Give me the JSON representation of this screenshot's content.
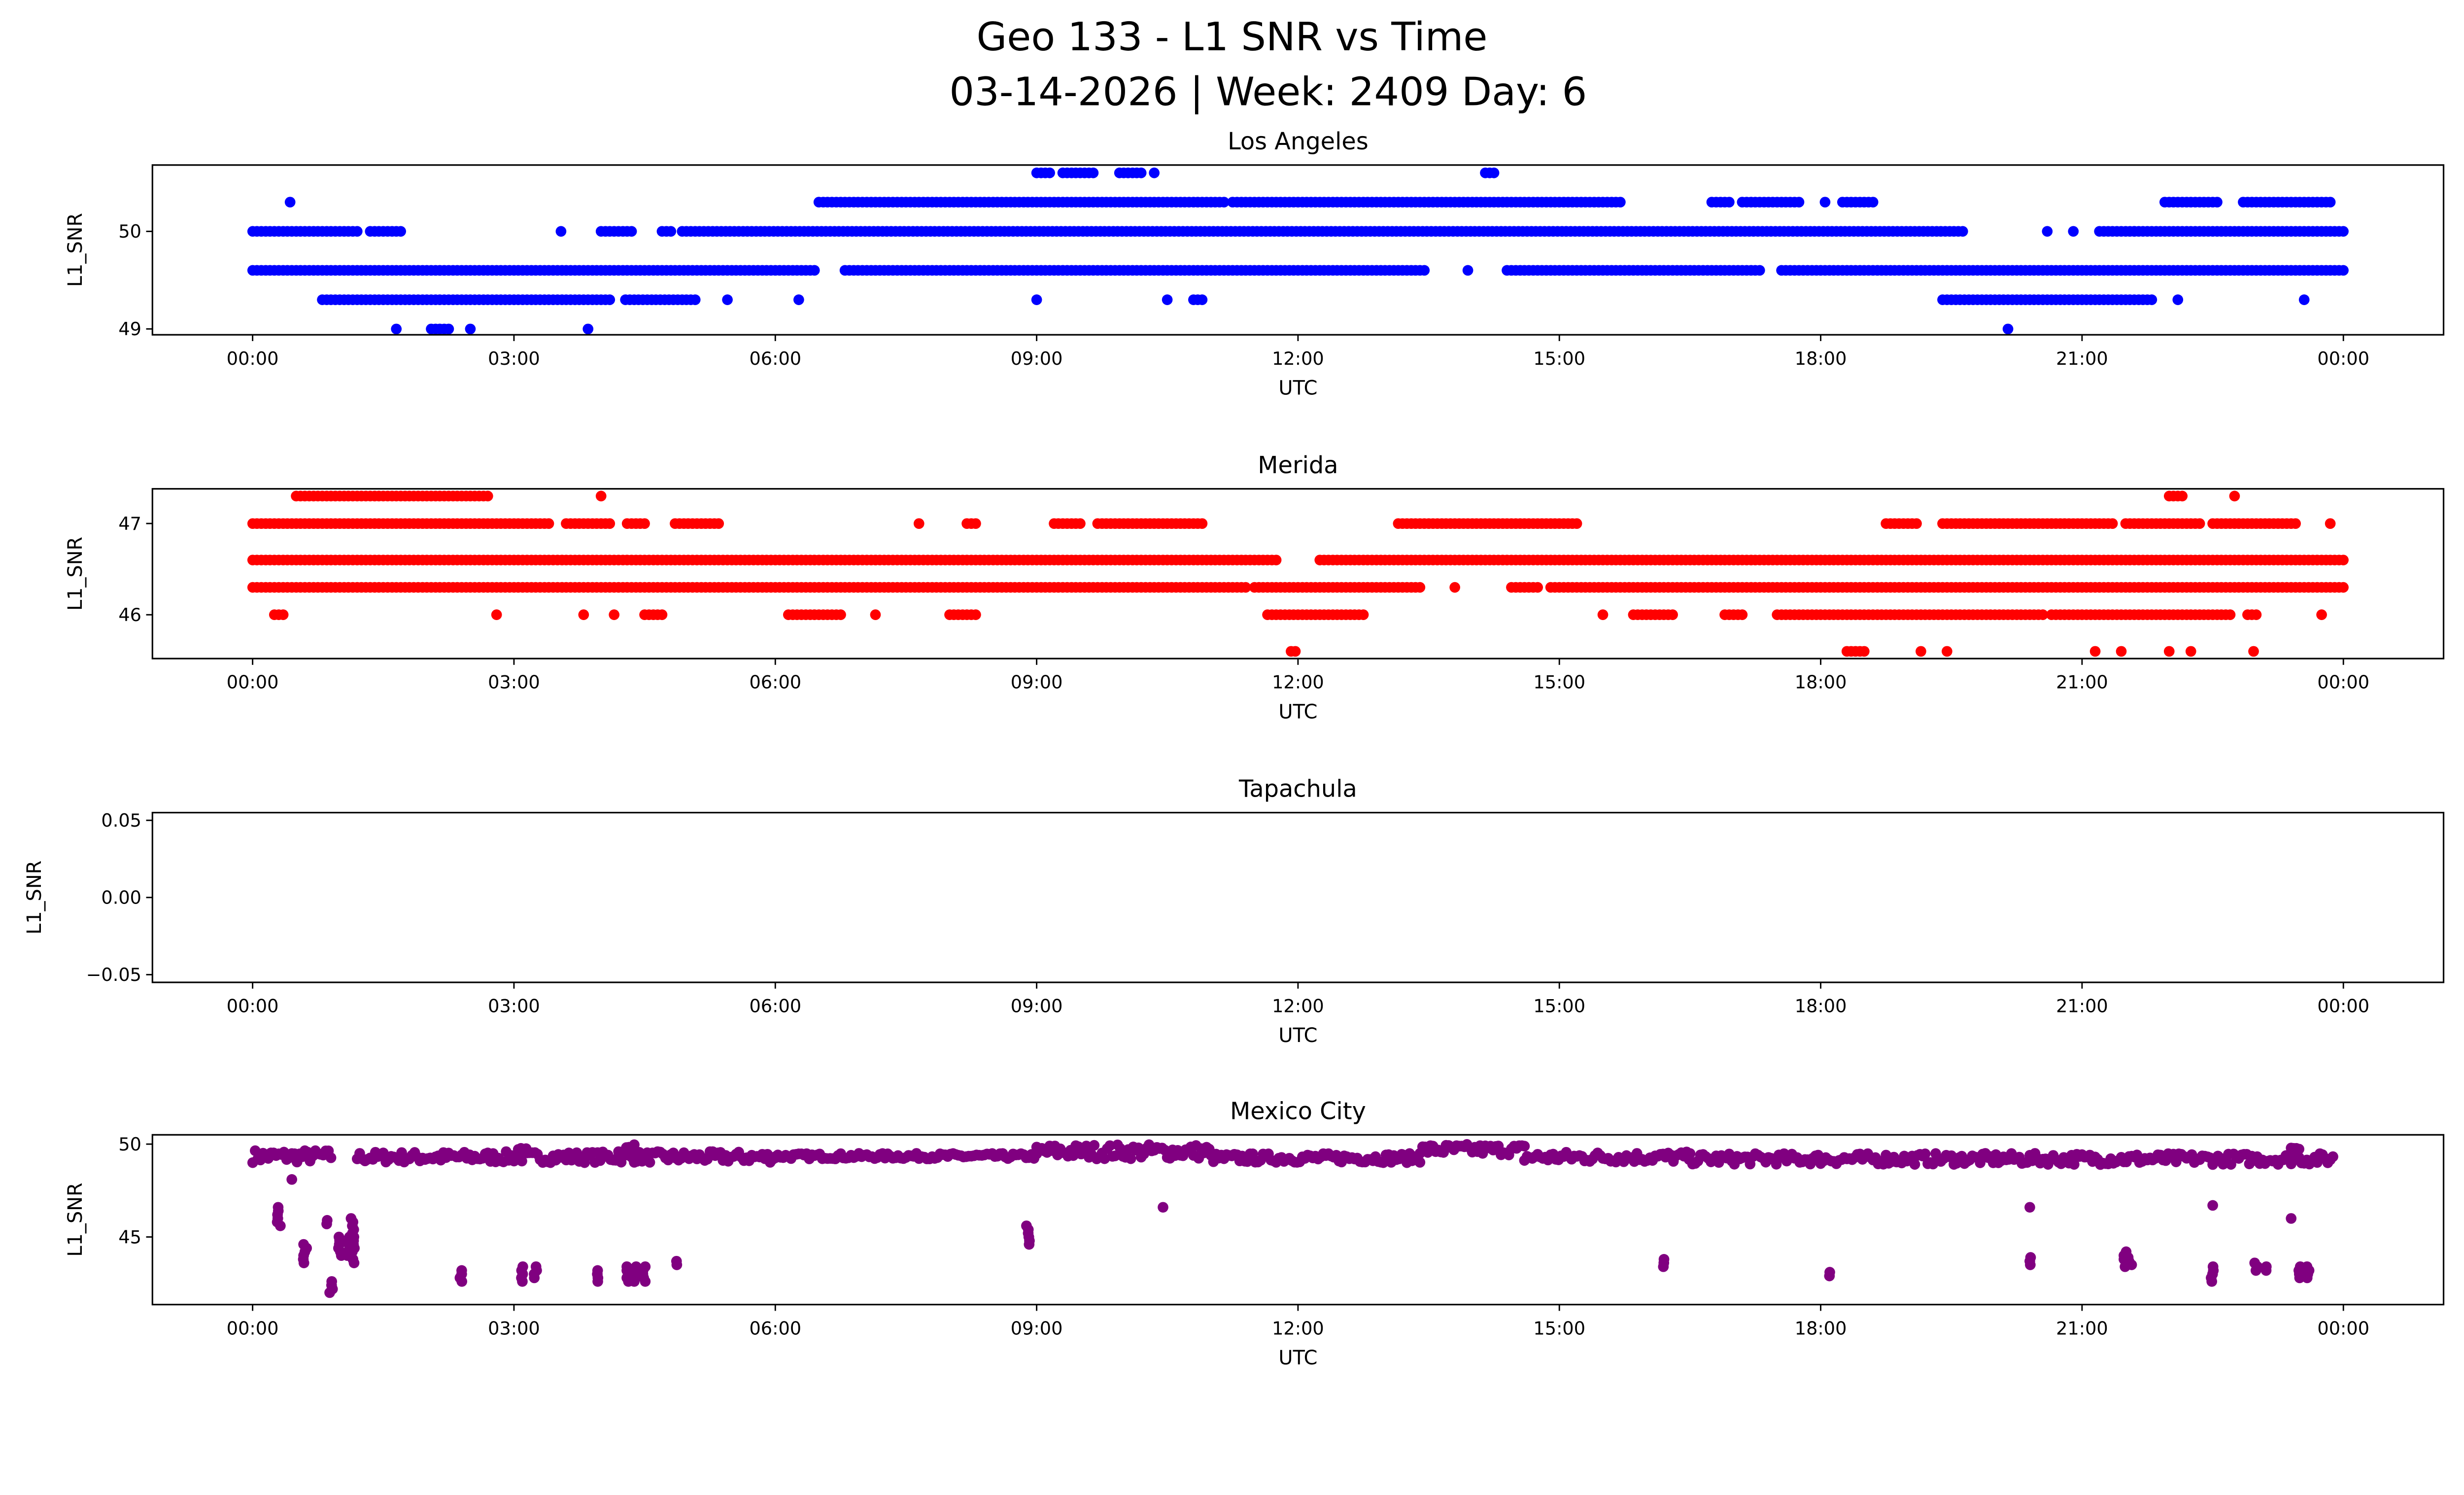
{
  "title_line1": "Geo 133 - L1 SNR vs Time",
  "title_line2": "03-14-2026 | Week: 2409 Day: 6",
  "chart_data": [
    {
      "type": "scatter",
      "title": "Los Angeles",
      "xlabel": "UTC",
      "ylabel": "L1_SNR",
      "color": "#0000ff",
      "xlim_hours": [
        -1.15,
        25.15
      ],
      "ylim": [
        48.94,
        50.68
      ],
      "xticks": [
        {
          "value": 0,
          "label": "00:00"
        },
        {
          "value": 3,
          "label": "03:00"
        },
        {
          "value": 6,
          "label": "06:00"
        },
        {
          "value": 9,
          "label": "09:00"
        },
        {
          "value": 12,
          "label": "12:00"
        },
        {
          "value": 15,
          "label": "15:00"
        },
        {
          "value": 18,
          "label": "18:00"
        },
        {
          "value": 21,
          "label": "21:00"
        },
        {
          "value": 24,
          "label": "00:00"
        }
      ],
      "yticks": [
        {
          "value": 49,
          "label": "49"
        },
        {
          "value": 50,
          "label": "50"
        }
      ],
      "segments_hours_value": [
        [
          50.6,
          9.0,
          9.15
        ],
        [
          50.6,
          9.3,
          9.65
        ],
        [
          50.6,
          9.95,
          10.2
        ],
        [
          50.6,
          10.35,
          10.35
        ],
        [
          50.6,
          14.15,
          14.25
        ],
        [
          50.3,
          0.43,
          0.43
        ],
        [
          50.3,
          6.5,
          11.15
        ],
        [
          50.3,
          11.25,
          15.7
        ],
        [
          50.3,
          16.75,
          16.95
        ],
        [
          50.3,
          17.1,
          17.75
        ],
        [
          50.3,
          18.05,
          18.05
        ],
        [
          50.3,
          18.25,
          18.6
        ],
        [
          50.3,
          21.95,
          22.55
        ],
        [
          50.3,
          22.85,
          23.85
        ],
        [
          50.0,
          0.0,
          1.2
        ],
        [
          50.0,
          1.35,
          1.7
        ],
        [
          50.0,
          3.54,
          3.54
        ],
        [
          50.0,
          4.0,
          4.37
        ],
        [
          50.0,
          4.7,
          4.8
        ],
        [
          50.0,
          4.93,
          19.65
        ],
        [
          50.0,
          20.6,
          20.6
        ],
        [
          50.0,
          20.9,
          20.9
        ],
        [
          50.0,
          21.2,
          21.6
        ],
        [
          50.0,
          21.6,
          24.0
        ],
        [
          49.6,
          0.0,
          6.45
        ],
        [
          49.6,
          6.8,
          13.45
        ],
        [
          49.6,
          13.95,
          13.95
        ],
        [
          49.6,
          14.4,
          17.3
        ],
        [
          49.6,
          17.55,
          24.0
        ],
        [
          49.3,
          0.8,
          4.1
        ],
        [
          49.3,
          4.28,
          5.1
        ],
        [
          49.3,
          5.45,
          5.45
        ],
        [
          49.3,
          6.27,
          6.27
        ],
        [
          49.3,
          9.0,
          9.0
        ],
        [
          49.3,
          10.5,
          10.5
        ],
        [
          49.3,
          10.8,
          10.9
        ],
        [
          49.3,
          19.4,
          21.8
        ],
        [
          49.3,
          22.1,
          22.1
        ],
        [
          49.3,
          23.55,
          23.55
        ],
        [
          49.0,
          1.65,
          1.65
        ],
        [
          49.0,
          2.05,
          2.28
        ],
        [
          49.0,
          2.5,
          2.5
        ],
        [
          49.0,
          3.85,
          3.85
        ],
        [
          49.0,
          20.15,
          20.15
        ]
      ]
    },
    {
      "type": "scatter",
      "title": "Merida",
      "xlabel": "UTC",
      "ylabel": "L1_SNR",
      "color": "#ff0000",
      "xlim_hours": [
        -1.15,
        25.15
      ],
      "ylim": [
        45.52,
        47.38
      ],
      "xticks": [
        {
          "value": 0,
          "label": "00:00"
        },
        {
          "value": 3,
          "label": "03:00"
        },
        {
          "value": 6,
          "label": "06:00"
        },
        {
          "value": 9,
          "label": "09:00"
        },
        {
          "value": 12,
          "label": "12:00"
        },
        {
          "value": 15,
          "label": "15:00"
        },
        {
          "value": 18,
          "label": "18:00"
        },
        {
          "value": 21,
          "label": "21:00"
        },
        {
          "value": 24,
          "label": "00:00"
        }
      ],
      "yticks": [
        {
          "value": 46,
          "label": "46"
        },
        {
          "value": 47,
          "label": "47"
        }
      ],
      "segments_hours_value": [
        [
          47.3,
          0.5,
          2.7
        ],
        [
          47.3,
          4.0,
          4.0
        ],
        [
          47.3,
          22.0,
          22.15
        ],
        [
          47.3,
          22.75,
          22.75
        ],
        [
          47.0,
          0.0,
          3.4
        ],
        [
          47.0,
          3.6,
          4.1
        ],
        [
          47.0,
          4.3,
          4.5
        ],
        [
          47.0,
          4.85,
          5.35
        ],
        [
          47.0,
          7.65,
          7.65
        ],
        [
          47.0,
          8.2,
          8.3
        ],
        [
          47.0,
          9.2,
          9.5
        ],
        [
          47.0,
          9.7,
          10.9
        ],
        [
          47.0,
          13.15,
          15.2
        ],
        [
          47.0,
          18.75,
          19.1
        ],
        [
          47.0,
          19.4,
          21.35
        ],
        [
          47.0,
          21.5,
          22.35
        ],
        [
          47.0,
          22.5,
          23.45
        ],
        [
          47.0,
          23.85,
          23.85
        ],
        [
          46.6,
          0.0,
          11.75
        ],
        [
          46.6,
          12.25,
          24.0
        ],
        [
          46.3,
          0.0,
          11.4
        ],
        [
          46.3,
          11.5,
          13.4
        ],
        [
          46.3,
          13.8,
          13.8
        ],
        [
          46.3,
          14.45,
          14.75
        ],
        [
          46.3,
          14.9,
          24.0
        ],
        [
          46.0,
          0.25,
          0.35
        ],
        [
          46.0,
          2.8,
          2.8
        ],
        [
          46.0,
          3.8,
          3.8
        ],
        [
          46.0,
          4.15,
          4.15
        ],
        [
          46.0,
          4.5,
          4.7
        ],
        [
          46.0,
          6.15,
          6.75
        ],
        [
          46.0,
          7.15,
          7.15
        ],
        [
          46.0,
          8.0,
          8.3
        ],
        [
          46.0,
          11.65,
          12.75
        ],
        [
          46.0,
          15.5,
          15.5
        ],
        [
          46.0,
          15.85,
          16.3
        ],
        [
          46.0,
          16.9,
          17.1
        ],
        [
          46.0,
          17.5,
          20.55
        ],
        [
          46.0,
          20.65,
          22.7
        ],
        [
          46.0,
          22.9,
          23.0
        ],
        [
          46.0,
          23.75,
          23.75
        ],
        [
          45.6,
          11.92,
          12.0
        ],
        [
          45.6,
          18.3,
          18.5
        ],
        [
          45.6,
          19.15,
          19.15
        ],
        [
          45.6,
          19.45,
          19.45
        ],
        [
          45.6,
          21.15,
          21.15
        ],
        [
          45.6,
          21.45,
          21.45
        ],
        [
          45.6,
          22.0,
          22.0
        ],
        [
          45.6,
          22.25,
          22.25
        ],
        [
          45.6,
          22.97,
          22.97
        ]
      ]
    },
    {
      "type": "scatter",
      "title": "Tapachula",
      "xlabel": "UTC",
      "ylabel": "L1_SNR",
      "color": "#000000",
      "xlim_hours": [
        -1.15,
        25.15
      ],
      "ylim": [
        -0.055,
        0.055
      ],
      "xticks": [
        {
          "value": 0,
          "label": "00:00"
        },
        {
          "value": 3,
          "label": "03:00"
        },
        {
          "value": 6,
          "label": "06:00"
        },
        {
          "value": 9,
          "label": "09:00"
        },
        {
          "value": 12,
          "label": "12:00"
        },
        {
          "value": 15,
          "label": "15:00"
        },
        {
          "value": 18,
          "label": "18:00"
        },
        {
          "value": 21,
          "label": "21:00"
        },
        {
          "value": 24,
          "label": "00:00"
        }
      ],
      "yticks": [
        {
          "value": -0.05,
          "label": "−0.05"
        },
        {
          "value": 0,
          "label": "0.00"
        },
        {
          "value": 0.05,
          "label": "0.05"
        }
      ],
      "segments_hours_value": []
    },
    {
      "type": "scatter",
      "title": "Mexico City",
      "xlabel": "UTC",
      "ylabel": "L1_SNR",
      "color": "#800080",
      "xlim_hours": [
        -1.15,
        25.15
      ],
      "ylim": [
        41.36,
        50.5
      ],
      "xticks": [
        {
          "value": 0,
          "label": "00:00"
        },
        {
          "value": 3,
          "label": "03:00"
        },
        {
          "value": 6,
          "label": "06:00"
        },
        {
          "value": 9,
          "label": "09:00"
        },
        {
          "value": 12,
          "label": "12:00"
        },
        {
          "value": 15,
          "label": "15:00"
        },
        {
          "value": 18,
          "label": "18:00"
        },
        {
          "value": 21,
          "label": "21:00"
        },
        {
          "value": 24,
          "label": "00:00"
        }
      ],
      "yticks": [
        {
          "value": 45,
          "label": "45"
        },
        {
          "value": 50,
          "label": "50"
        }
      ],
      "bands_hours_lo_hi": [
        [
          0.0,
          0.9,
          49.0,
          49.7
        ],
        [
          1.2,
          6.0,
          49.0,
          49.6
        ],
        [
          6.0,
          9.0,
          49.2,
          49.5
        ],
        [
          9.0,
          11.0,
          49.2,
          50.0
        ],
        [
          11.0,
          13.4,
          49.0,
          49.5
        ],
        [
          13.4,
          14.6,
          49.4,
          50.0
        ],
        [
          14.6,
          16.5,
          49.0,
          49.6
        ],
        [
          16.5,
          23.9,
          48.9,
          49.5
        ],
        [
          3.05,
          3.15,
          49.6,
          50.0
        ],
        [
          4.2,
          4.45,
          49.5,
          50.0
        ],
        [
          23.4,
          23.5,
          49.5,
          49.9
        ]
      ],
      "outliers_hours_lo_hi": [
        [
          0.3,
          46.6,
          45.6
        ],
        [
          0.45,
          48.1,
          48.1
        ],
        [
          0.6,
          44.6,
          43.6
        ],
        [
          0.85,
          46.0,
          45.7
        ],
        [
          0.9,
          42.6,
          42.0
        ],
        [
          1.0,
          45.0,
          44.0
        ],
        [
          1.1,
          45.0,
          44.0
        ],
        [
          1.15,
          46.0,
          43.6
        ],
        [
          2.4,
          43.2,
          42.6
        ],
        [
          3.1,
          43.4,
          42.6
        ],
        [
          3.25,
          43.4,
          42.8
        ],
        [
          3.95,
          43.2,
          42.6
        ],
        [
          4.3,
          43.4,
          42.6
        ],
        [
          4.4,
          43.4,
          42.6
        ],
        [
          4.5,
          43.4,
          42.6
        ],
        [
          4.85,
          43.7,
          43.5
        ],
        [
          8.9,
          45.6,
          44.6
        ],
        [
          10.45,
          46.6,
          46.6
        ],
        [
          16.2,
          43.9,
          43.4
        ],
        [
          18.1,
          43.2,
          42.9
        ],
        [
          20.4,
          44.0,
          43.5
        ],
        [
          20.4,
          46.6,
          46.6
        ],
        [
          21.5,
          44.3,
          43.4
        ],
        [
          21.55,
          44.0,
          43.5
        ],
        [
          22.5,
          46.7,
          46.7
        ],
        [
          22.5,
          43.4,
          42.6
        ],
        [
          23.0,
          43.7,
          43.2
        ],
        [
          23.1,
          43.5,
          43.2
        ],
        [
          23.4,
          46.0,
          46.0
        ],
        [
          23.5,
          43.4,
          42.8
        ],
        [
          23.6,
          43.4,
          42.8
        ]
      ]
    }
  ]
}
